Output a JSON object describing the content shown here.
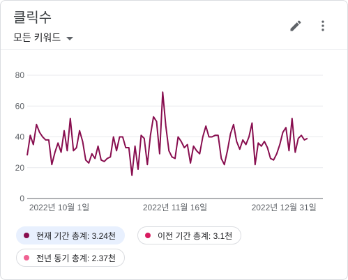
{
  "header": {
    "title": "클릭수",
    "dropdown_label": "모든 키워드",
    "edit_icon": "pencil-icon",
    "more_icon": "more-vert-icon"
  },
  "colors": {
    "current": "#880e4f",
    "previous": "#d81b60",
    "last_year": "#f06292",
    "grid": "#e8eaed",
    "axis": "#5f6368"
  },
  "chart_data": {
    "type": "line",
    "ylim": [
      0,
      80
    ],
    "yticks": [
      0,
      20,
      40,
      60,
      80
    ],
    "xlim": [
      "2022-09-29",
      "2023-01-03"
    ],
    "x_tick_labels": [
      {
        "date": "2022-10-01",
        "label": "2022년 10월 1일"
      },
      {
        "date": "2022-11-16",
        "label": "2022년 11월 16일"
      },
      {
        "date": "2022-12-31",
        "label": "2022년 12월 31일"
      }
    ],
    "grid": true,
    "series": [
      {
        "name": "현재 기간 총계: 3.24천",
        "x_start": "2022-09-29",
        "values": [
          28,
          41,
          35,
          48,
          43,
          40,
          38,
          38,
          22,
          30,
          36,
          30,
          44,
          31,
          52,
          31,
          33,
          44,
          37,
          25,
          23,
          29,
          26,
          34,
          25,
          24,
          26,
          27,
          40,
          31,
          40,
          40,
          33,
          33,
          15,
          34,
          19,
          41,
          39,
          22,
          41,
          53,
          50,
          29,
          69,
          47,
          31,
          27,
          26,
          40,
          37,
          33,
          35,
          23,
          34,
          31,
          29,
          40,
          47,
          40,
          40,
          41,
          41,
          26,
          22,
          31,
          42,
          48,
          37,
          32,
          38,
          35,
          40,
          49,
          22,
          36,
          34,
          37,
          33,
          26,
          25,
          29,
          35,
          43,
          46,
          31,
          52,
          30,
          39,
          41,
          38,
          39
        ]
      }
    ]
  },
  "legend": [
    {
      "label": "현재 기간 총계: 3.24천",
      "color": "#880e4f",
      "active": true
    },
    {
      "label": "이전 기간 총계: 3.1천",
      "color": "#d81b60",
      "active": false
    },
    {
      "label": "전년 동기 총계: 2.37천",
      "color": "#f06292",
      "active": false
    }
  ]
}
